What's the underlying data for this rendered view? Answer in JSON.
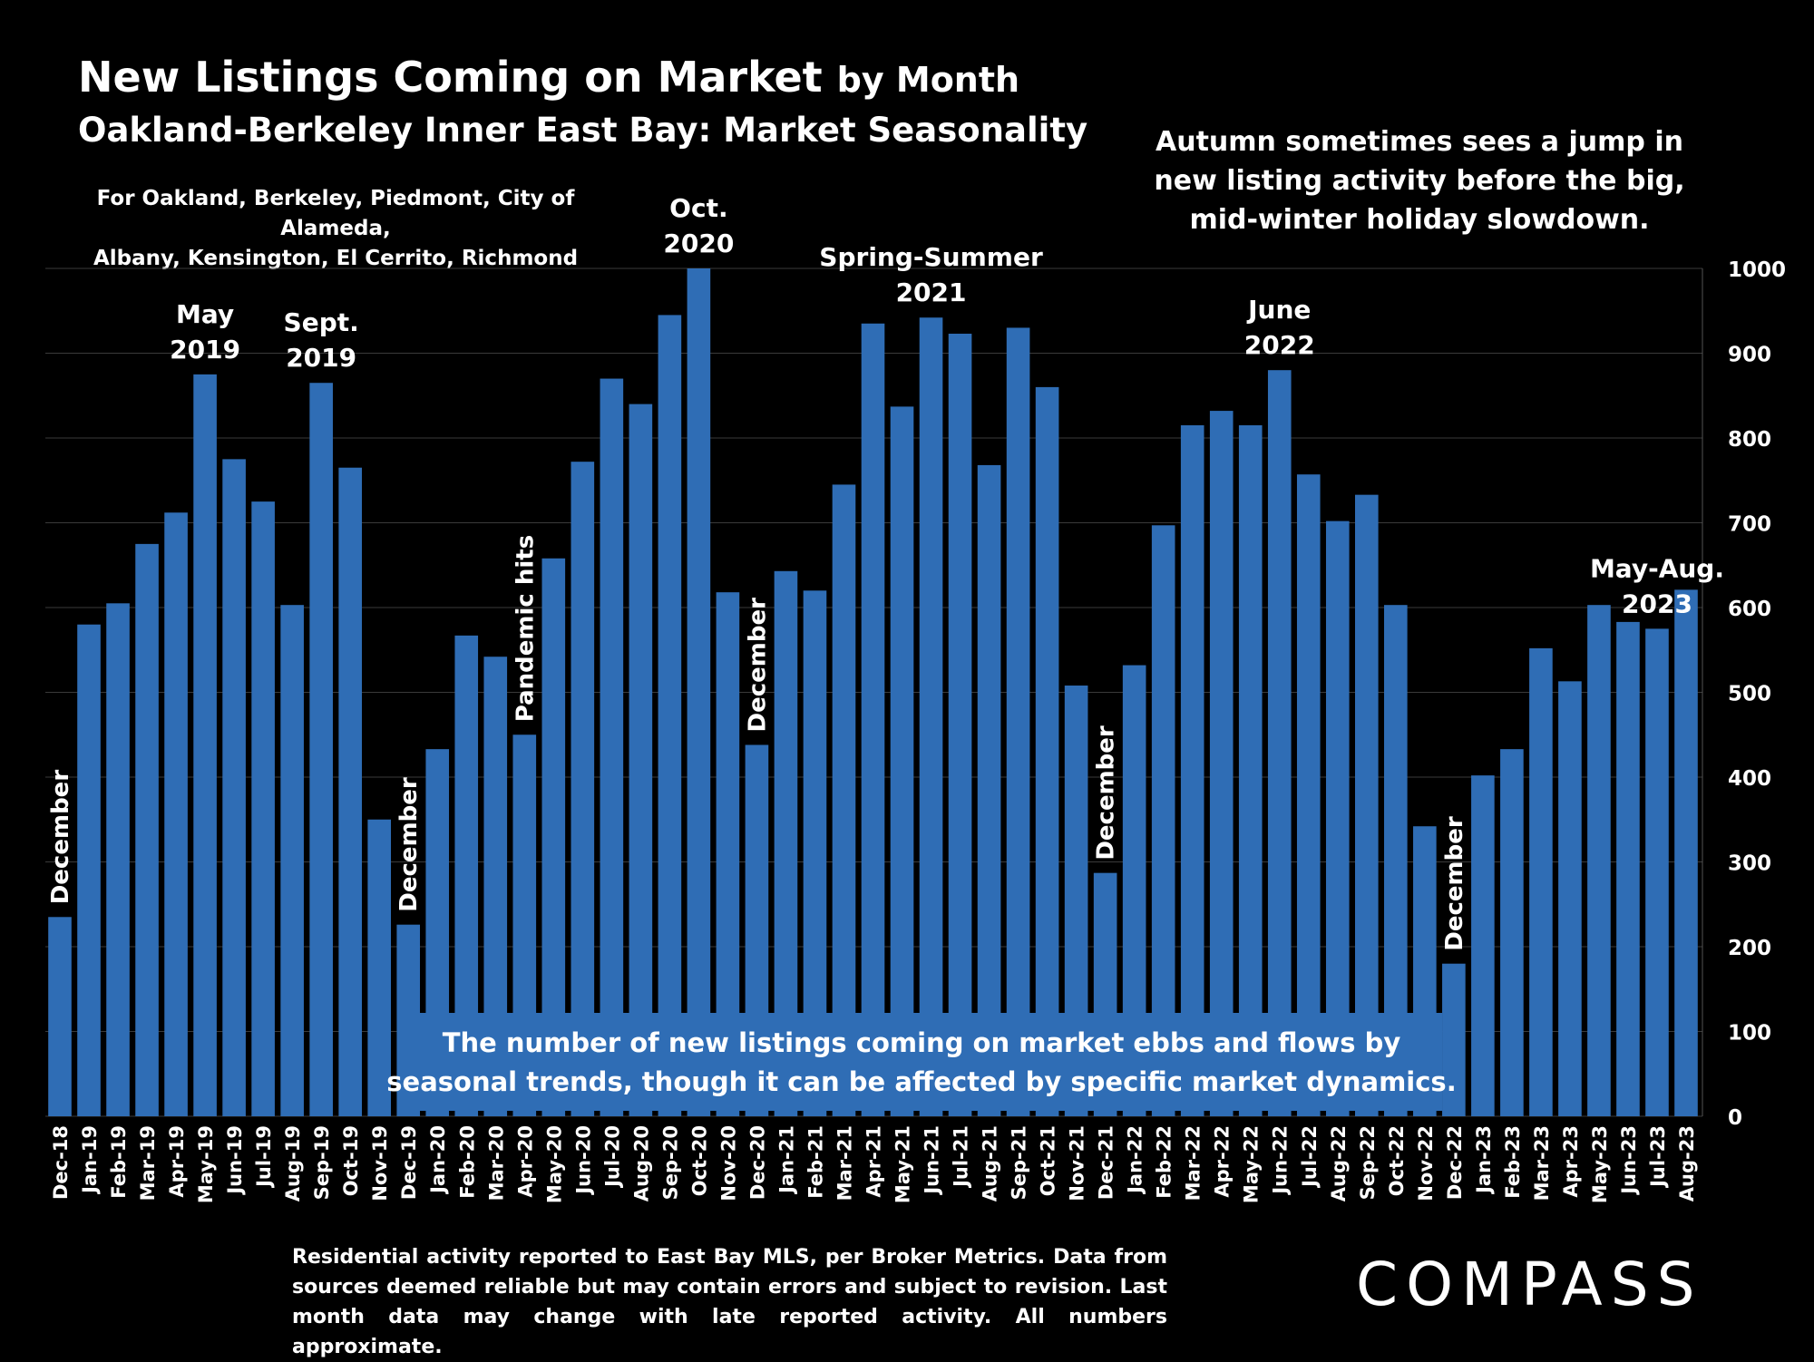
{
  "header": {
    "title": "New Listings Coming on Market",
    "title_suffix": "by Month",
    "subtitle": "Oakland-Berkeley Inner East Bay: Market Seasonality",
    "coverage_line1": "For Oakland, Berkeley, Piedmont, City of Alameda,",
    "coverage_line2": "Albany, Kensington, El Cerrito, Richmond"
  },
  "notes": {
    "autumn_line1": "Autumn sometimes sees a jump in",
    "autumn_line2": "new listing activity before the big,",
    "autumn_line3": "mid-winter holiday slowdown.",
    "box_line1": "The number of new listings coming on market ebbs and flows by",
    "box_line2": "seasonal trends, though it can be affected by specific market dynamics.",
    "footnote": "Residential activity reported to East Bay MLS, per Broker Metrics. Data from sources deemed reliable but may contain errors and subject to revision. Last month data may change with late reported activity. All numbers approximate."
  },
  "brand": {
    "logo": "COMPASS"
  },
  "colors": {
    "bar": "#2F6DB5",
    "box": "#2F6DB5",
    "background": "#000000",
    "grid": "#3a3a3a",
    "text": "#ffffff"
  },
  "chart_data": {
    "type": "bar",
    "categories": [
      "Dec-18",
      "Jan-19",
      "Feb-19",
      "Mar-19",
      "Apr-19",
      "May-19",
      "Jun-19",
      "Jul-19",
      "Aug-19",
      "Sep-19",
      "Oct-19",
      "Nov-19",
      "Dec-19",
      "Jan-20",
      "Feb-20",
      "Mar-20",
      "Apr-20",
      "May-20",
      "Jun-20",
      "Jul-20",
      "Aug-20",
      "Sep-20",
      "Oct-20",
      "Nov-20",
      "Dec-20",
      "Jan-21",
      "Feb-21",
      "Mar-21",
      "Apr-21",
      "May-21",
      "Jun-21",
      "Jul-21",
      "Aug-21",
      "Sep-21",
      "Oct-21",
      "Nov-21",
      "Dec-21",
      "Jan-22",
      "Feb-22",
      "Mar-22",
      "Apr-22",
      "May-22",
      "Jun-22",
      "Jul-22",
      "Aug-22",
      "Sep-22",
      "Oct-22",
      "Nov-22",
      "Dec-22",
      "Jan-23",
      "Feb-23",
      "Mar-23",
      "Apr-23",
      "May-23",
      "Jun-23",
      "Jul-23",
      "Aug-23"
    ],
    "values": [
      235,
      580,
      605,
      675,
      712,
      875,
      775,
      725,
      603,
      865,
      765,
      350,
      226,
      433,
      567,
      542,
      450,
      658,
      772,
      870,
      840,
      945,
      1000,
      618,
      438,
      643,
      620,
      745,
      935,
      837,
      942,
      923,
      768,
      930,
      860,
      508,
      287,
      532,
      697,
      815,
      832,
      815,
      880,
      757,
      702,
      733,
      603,
      342,
      180,
      402,
      433,
      552,
      513,
      603,
      583,
      575,
      621
    ],
    "ylim": [
      0,
      1000
    ],
    "yticks": [
      0,
      100,
      200,
      300,
      400,
      500,
      600,
      700,
      800,
      900,
      1000
    ],
    "grid": true,
    "y_axis_side": "right",
    "annotations": [
      {
        "index": 0,
        "text": "December",
        "style": "vertical"
      },
      {
        "index": 5,
        "text": [
          "May",
          "2019"
        ],
        "style": "label"
      },
      {
        "index": 9,
        "text": [
          "Sept.",
          "2019"
        ],
        "style": "label"
      },
      {
        "index": 12,
        "text": "December",
        "style": "vertical"
      },
      {
        "index": 16,
        "text": "Pandemic hits",
        "style": "vertical"
      },
      {
        "index": 22,
        "text": [
          "Oct.",
          "2020"
        ],
        "style": "label"
      },
      {
        "index": 24,
        "text": "December",
        "style": "vertical"
      },
      {
        "index": 30,
        "text": [
          "Spring-Summer",
          "2021"
        ],
        "style": "label"
      },
      {
        "index": 36,
        "text": "December",
        "style": "vertical"
      },
      {
        "index": 42,
        "text": [
          "June",
          "2022"
        ],
        "style": "label"
      },
      {
        "index": 48,
        "text": "December",
        "style": "vertical"
      },
      {
        "index": 55,
        "text": [
          "May-Aug.",
          "2023"
        ],
        "style": "label"
      }
    ]
  }
}
